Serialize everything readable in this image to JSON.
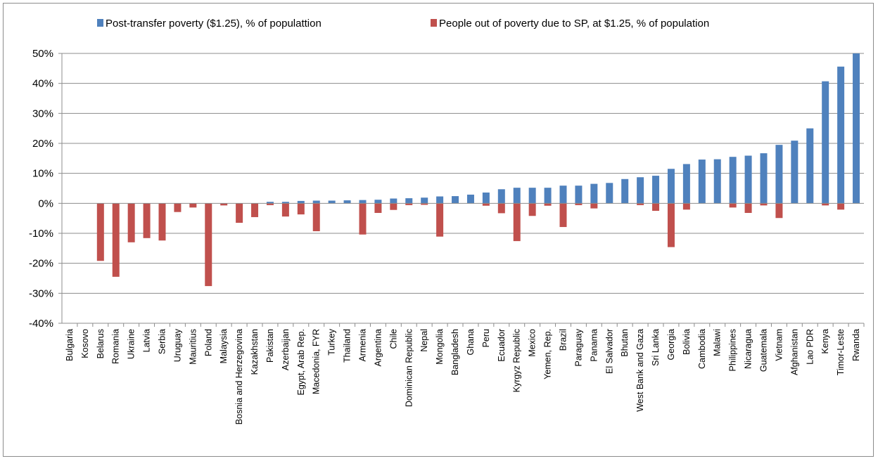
{
  "chart_data": {
    "type": "bar",
    "title": "",
    "xlabel": "",
    "ylabel": "",
    "ylim": [
      -40,
      50
    ],
    "y_ticks": [
      -40,
      -30,
      -20,
      -10,
      0,
      10,
      20,
      30,
      40,
      50
    ],
    "y_tick_labels": [
      "-40%",
      "-30%",
      "-20%",
      "-10%",
      "0%",
      "10%",
      "20%",
      "30%",
      "40%",
      "50%"
    ],
    "grid": "horizontal",
    "legend_position": "top",
    "categories": [
      "Bulgaria",
      "Kosovo",
      "Belarus",
      "Romania",
      "Ukraine",
      "Latvia",
      "Serbia",
      "Uruguay",
      "Mauritius",
      "Poland",
      "Malaysia",
      "Bosnia and Herzegovina",
      "Kazakhstan",
      "Pakistan",
      "Azerbaijan",
      "Egypt, Arab Rep.",
      "Macedonia, FYR",
      "Turkey",
      "Thailand",
      "Armenia",
      "Argentina",
      "Chile",
      "Dominican Republic",
      "Nepal",
      "Mongolia",
      "Bangladesh",
      "Ghana",
      "Peru",
      "Ecuador",
      "Kyrgyz Republic",
      "Mexico",
      "Yemen, Rep.",
      "Brazil",
      "Paraguay",
      "Panama",
      "El Salvador",
      "Bhutan",
      "West Bank and Gaza",
      "Sri Lanka",
      "Georgia",
      "Bolivia",
      "Cambodia",
      "Malawi",
      "Philippines",
      "Nicaragua",
      "Guatemala",
      "Vietnam",
      "Afghanistan",
      "Lao PDR",
      "Kenya",
      "Timor-Leste",
      "Rwanda"
    ],
    "series": [
      {
        "name": "Post-transfer poverty ($1.25), % of populattion",
        "color": "#4f81bd",
        "values": [
          0,
          0,
          0,
          0,
          0,
          0,
          0,
          0,
          0,
          0,
          0,
          0,
          0,
          0.5,
          0.5,
          0.8,
          0.9,
          0.9,
          1.0,
          1.1,
          1.2,
          1.6,
          1.7,
          1.9,
          2.3,
          2.4,
          2.9,
          3.6,
          4.7,
          5.2,
          5.2,
          5.2,
          5.9,
          5.9,
          6.5,
          6.8,
          8.1,
          8.7,
          9.2,
          11.5,
          13.1,
          14.6,
          14.7,
          15.5,
          15.9,
          16.7,
          19.5,
          20.9,
          25.0,
          40.7,
          45.6,
          50.0
        ]
      },
      {
        "name": "People out of poverty due to SP, at $1.25, % of population",
        "color": "#c0504d",
        "values": [
          0,
          0,
          -19.2,
          -24.5,
          -13.0,
          -11.6,
          -12.4,
          -2.9,
          -1.4,
          -27.6,
          -0.7,
          -6.5,
          -4.6,
          -0.6,
          -4.4,
          -3.7,
          -9.3,
          0,
          0,
          -10.4,
          -3.2,
          -2.2,
          -0.6,
          -0.5,
          -11.1,
          0,
          0,
          -0.8,
          -3.3,
          -12.6,
          -4.2,
          -0.8,
          -7.9,
          -0.6,
          -1.7,
          0,
          0,
          -0.6,
          -2.5,
          -14.6,
          -2.1,
          0,
          0,
          -1.4,
          -3.2,
          -0.7,
          -4.9,
          0,
          0,
          -0.7,
          -2.1,
          0
        ]
      }
    ]
  }
}
